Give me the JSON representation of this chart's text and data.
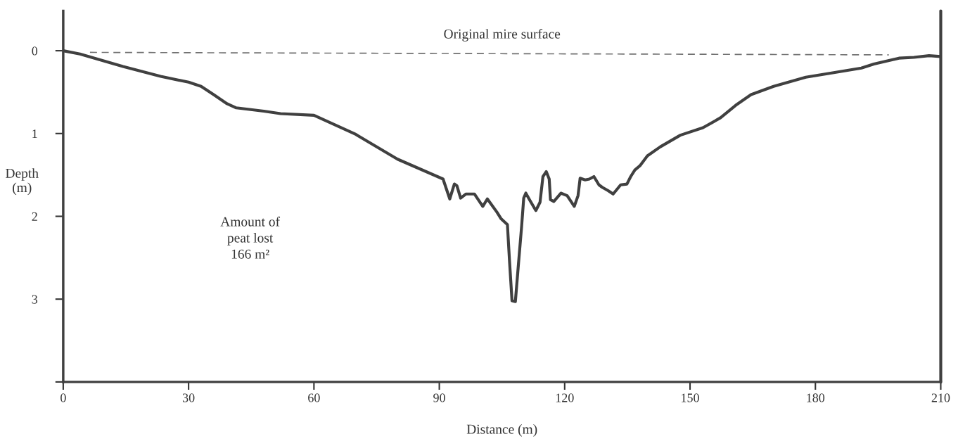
{
  "chart_data": {
    "type": "line",
    "xlabel": "Distance (m)",
    "ylabel": "Depth\n(m)",
    "xlim": [
      0,
      210
    ],
    "xticks": [
      0,
      30,
      60,
      90,
      120,
      150,
      180,
      210
    ],
    "ylim": [
      4,
      -0.48
    ],
    "yticks": [
      0,
      1,
      2,
      3,
      {
        "value": 4,
        "label": null
      }
    ],
    "grid": false,
    "legend": false,
    "series": [
      {
        "color": "#404040",
        "line_style": "solid",
        "x": [
          0,
          4,
          14.3,
          23.3,
          30,
          33,
          36,
          39.2,
          41.4,
          48,
          52,
          60,
          70,
          80,
          90.9,
          92.5,
          93.6,
          94.2,
          95.1,
          96.4,
          98.4,
          100.4,
          101.5,
          103.8,
          104.8,
          106.3,
          106.8,
          107.4,
          108.2,
          109,
          109.7,
          110.2,
          110.7,
          111.6,
          113.1,
          114.1,
          114.8,
          115.6,
          116.3,
          116.6,
          117.4,
          119.1,
          120.6,
          122.3,
          123.2,
          123.7,
          124.9,
          125.9,
          127,
          128.2,
          129,
          130.4,
          131.6,
          133.4,
          134.9,
          135.8,
          136.8,
          138,
          139.8,
          142.9,
          147.7,
          153.1,
          157.3,
          160.9,
          164.6,
          170,
          177.7,
          184.9,
          191,
          194,
          200,
          203.6,
          207.2,
          210
        ],
        "values": [
          0,
          0.04,
          0.19,
          0.31,
          0.38,
          0.43,
          0.53,
          0.64,
          0.69,
          0.73,
          0.76,
          0.78,
          1.01,
          1.31,
          1.55,
          1.79,
          1.61,
          1.63,
          1.78,
          1.73,
          1.73,
          1.88,
          1.79,
          1.95,
          2.03,
          2.1,
          2.54,
          3.02,
          3.03,
          2.54,
          2.12,
          1.78,
          1.72,
          1.8,
          1.93,
          1.83,
          1.52,
          1.46,
          1.55,
          1.8,
          1.82,
          1.72,
          1.75,
          1.88,
          1.75,
          1.54,
          1.56,
          1.55,
          1.52,
          1.62,
          1.65,
          1.69,
          1.73,
          1.62,
          1.61,
          1.52,
          1.44,
          1.39,
          1.27,
          1.16,
          1.02,
          0.93,
          0.81,
          0.66,
          0.53,
          0.43,
          0.32,
          0.26,
          0.21,
          0.16,
          0.09,
          0.08,
          0.06,
          0.07
        ]
      },
      {
        "color": "#707070",
        "line_style": "dashed",
        "x": [
          6.4,
          197.6
        ],
        "values": [
          0.02,
          0.05
        ]
      }
    ],
    "ref_lines": [
      {
        "axis": "x",
        "value": 210,
        "color": "#404040"
      }
    ],
    "annotations": [
      "Original mire surface",
      "Amount of\npeat lost\n166 m²"
    ]
  }
}
